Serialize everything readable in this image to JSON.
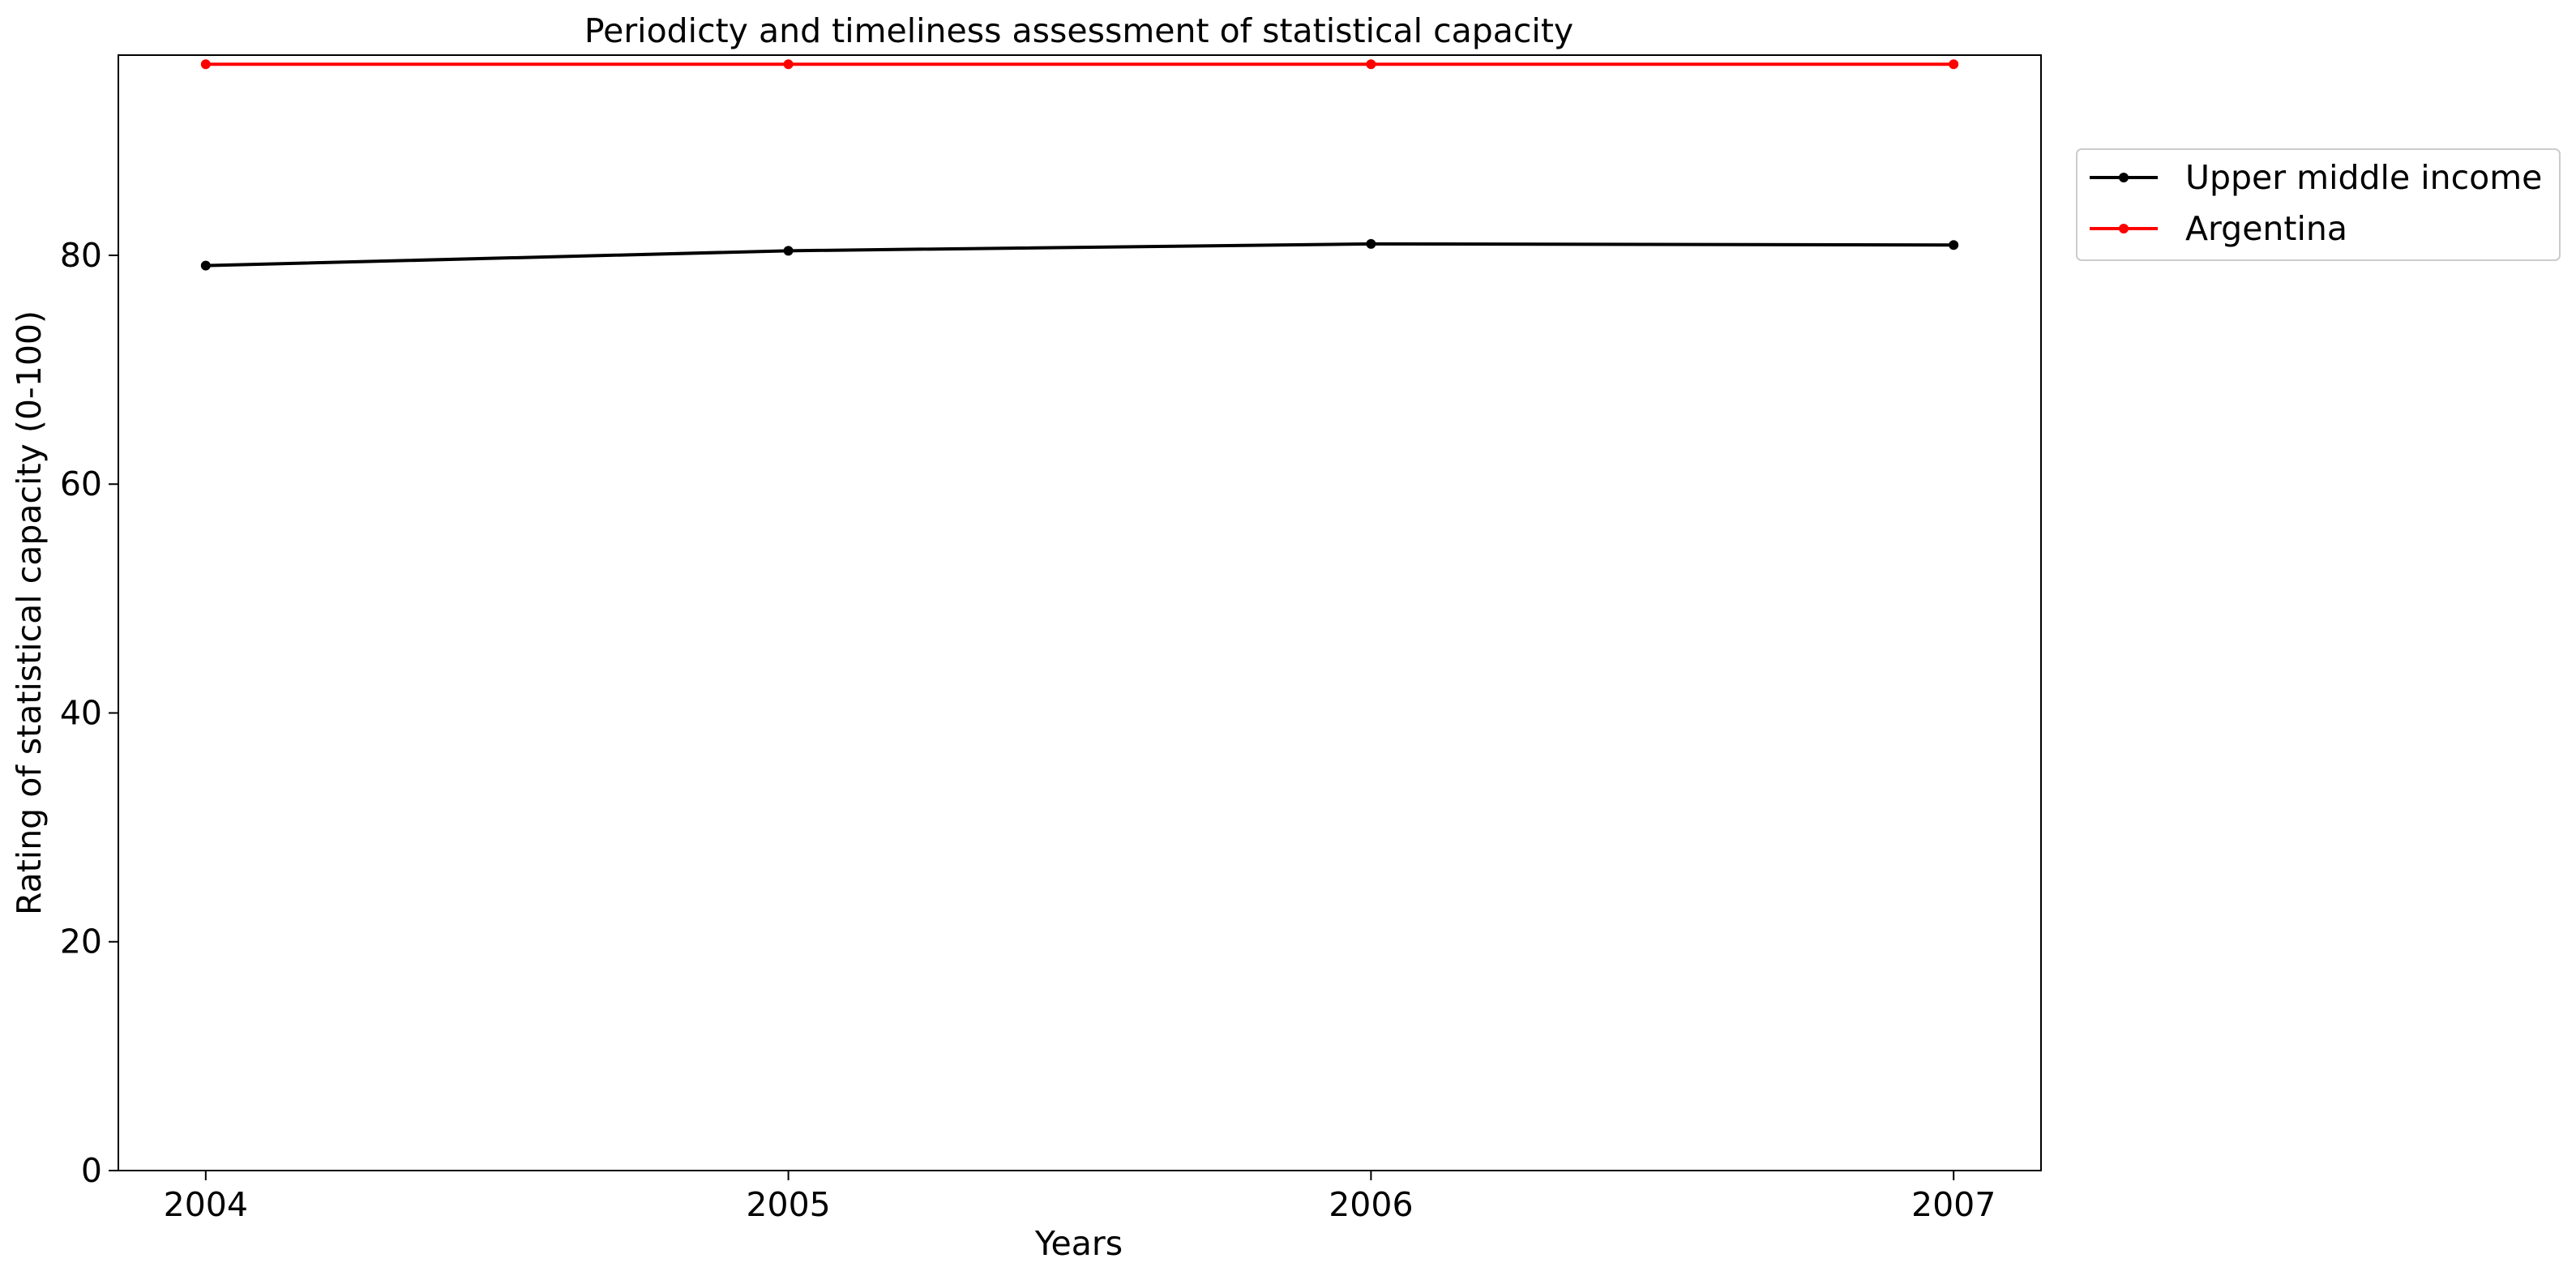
{
  "chart_data": {
    "type": "line",
    "title": "Periodicty and timeliness assessment of statistical capacity",
    "xlabel": "Years",
    "ylabel": "Rating of statistical capacity (0-100)",
    "x": [
      2004,
      2005,
      2006,
      2007
    ],
    "x_tick_labels": [
      "2004",
      "2005",
      "2006",
      "2007"
    ],
    "xlim": [
      2003.85,
      2007.15
    ],
    "ylim": [
      0,
      97.5
    ],
    "y_ticks": [
      0,
      20,
      40,
      60,
      80
    ],
    "y_tick_labels": [
      "0",
      "20",
      "40",
      "60",
      "80"
    ],
    "grid": false,
    "legend_position": "upper right, outside plot area",
    "series": [
      {
        "name": "Upper middle income",
        "color": "#000000",
        "marker": "circle",
        "values": [
          79.1,
          80.4,
          81.0,
          80.9
        ]
      },
      {
        "name": "Argentina",
        "color": "#ff0000",
        "marker": "circle",
        "values": [
          96.7,
          96.7,
          96.7,
          96.7
        ]
      }
    ]
  }
}
